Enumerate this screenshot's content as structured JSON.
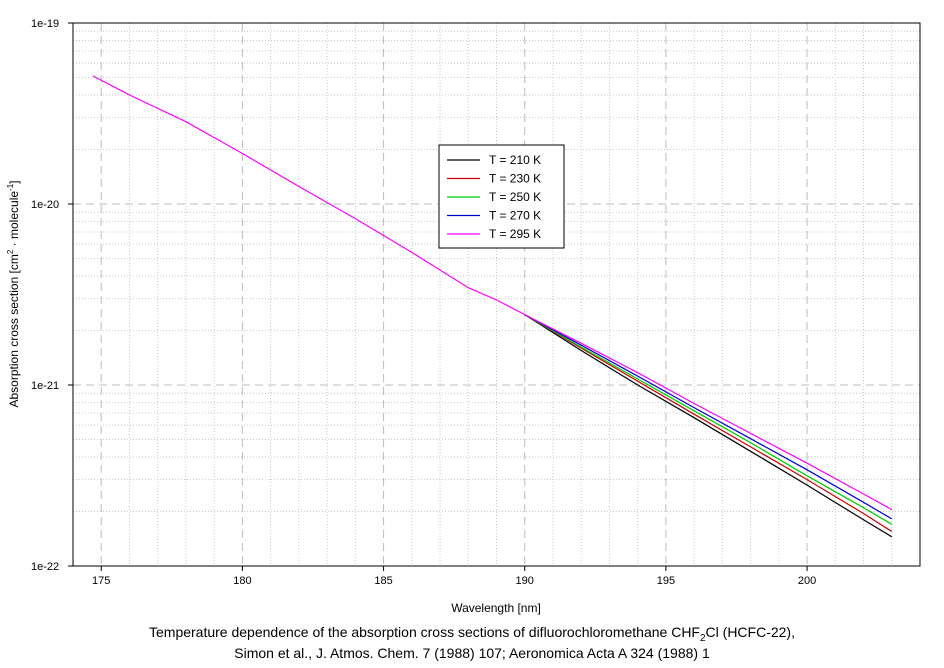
{
  "chart_data": {
    "type": "line",
    "title": "",
    "xlabel": "Wavelength [nm]",
    "ylabel": {
      "text_main": "Absorption cross section [cm",
      "sup_1": "2",
      "text_mid": " · molecule",
      "sup_2": "-1",
      "text_end": "]"
    },
    "xlim": [
      174,
      204
    ],
    "ylim": [
      1e-22,
      1e-19
    ],
    "yscale": "log",
    "x_ticks": [
      175,
      180,
      185,
      190,
      195,
      200
    ],
    "x_tick_labels": [
      "175",
      "180",
      "185",
      "190",
      "195",
      "200"
    ],
    "y_ticks": [
      1e-22,
      1e-21,
      1e-20,
      1e-19
    ],
    "y_tick_labels": [
      "1e-22",
      "1e-21",
      "1e-20",
      "1e-19"
    ],
    "grid": true,
    "legend_position": "center",
    "series": [
      {
        "name": "T = 210 K",
        "color": "#000000",
        "x": [
          190,
          192,
          194,
          196,
          198,
          200,
          202,
          203
        ],
        "y": [
          2.45e-21,
          1.55e-21,
          1e-21,
          6.6e-22,
          4.3e-22,
          2.8e-22,
          1.8e-22,
          1.45e-22
        ]
      },
      {
        "name": "T = 230 K",
        "color": "#cc0000",
        "x": [
          190,
          192,
          194,
          196,
          198,
          200,
          202,
          203
        ],
        "y": [
          2.45e-21,
          1.6e-21,
          1.05e-21,
          6.9e-22,
          4.55e-22,
          3e-22,
          1.95e-22,
          1.55e-22
        ]
      },
      {
        "name": "T = 250 K",
        "color": "#00cc00",
        "x": [
          190,
          192,
          194,
          196,
          198,
          200,
          202,
          203
        ],
        "y": [
          2.45e-21,
          1.62e-21,
          1.08e-21,
          7.2e-22,
          4.8e-22,
          3.15e-22,
          2.1e-22,
          1.7e-22
        ]
      },
      {
        "name": "T = 270 K",
        "color": "#0000cc",
        "x": [
          190,
          192,
          194,
          196,
          198,
          200,
          202,
          203
        ],
        "y": [
          2.45e-21,
          1.66e-21,
          1.12e-21,
          7.5e-22,
          5.05e-22,
          3.4e-22,
          2.25e-22,
          1.82e-22
        ]
      },
      {
        "name": "T = 295 K",
        "color": "#ff00ff",
        "x": [
          174.7,
          176,
          178,
          180,
          182,
          184,
          186,
          188,
          189,
          190,
          192,
          194,
          196,
          198,
          200,
          202,
          203
        ],
        "y": [
          5.1e-20,
          4e-20,
          2.85e-20,
          1.9e-20,
          1.25e-20,
          8.3e-21,
          5.4e-21,
          3.45e-21,
          2.95e-21,
          2.45e-21,
          1.7e-21,
          1.17e-21,
          7.9e-22,
          5.4e-22,
          3.7e-22,
          2.5e-22,
          2.05e-22
        ]
      }
    ]
  },
  "caption": {
    "line1_pre": "Temperature dependence of the absorption cross sections of difluorochloromethane CHF",
    "line1_sub": "2",
    "line1_post": "Cl (HCFC-22),",
    "line2": "Simon et al., J. Atmos. Chem. 7 (1988) 107; Aeronomica Acta A 324 (1988) 1"
  }
}
